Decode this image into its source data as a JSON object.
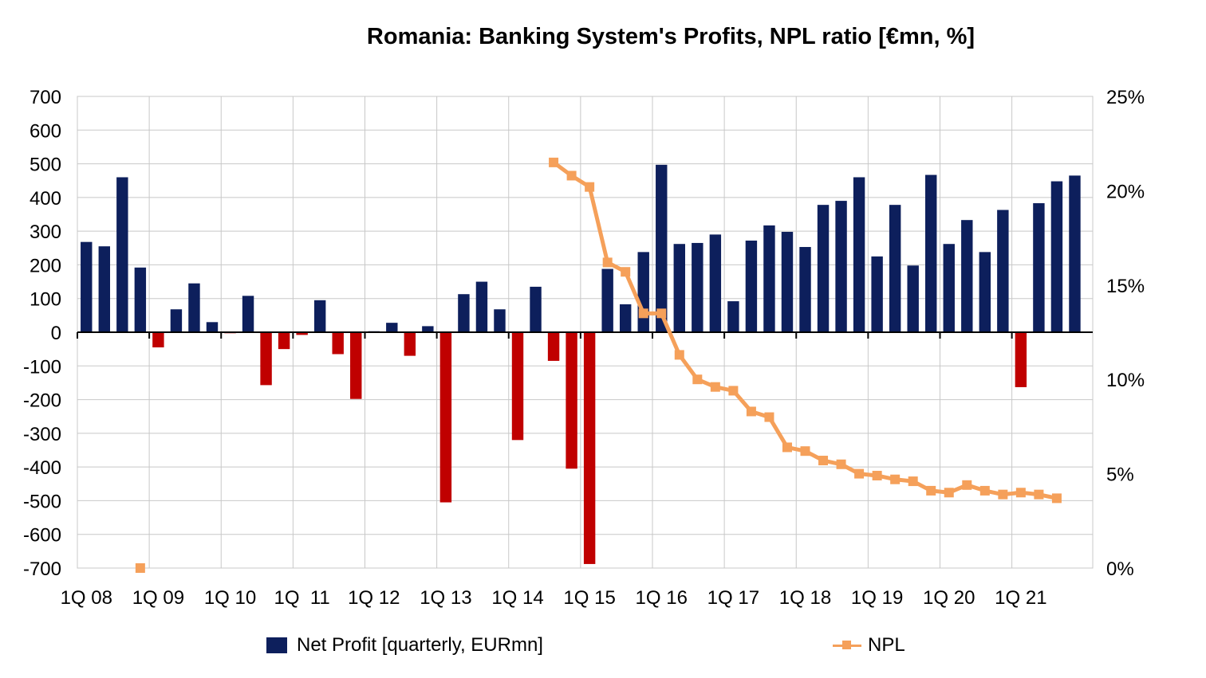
{
  "chart_data": {
    "type": "bar",
    "title": "Romania: Banking System's Profits, NPL ratio [€mn, %]",
    "x_tick_labels": [
      "1Q 08",
      "1Q 09",
      "1Q 10",
      "1Q  11",
      "1Q 12",
      "1Q 13",
      "1Q 14",
      "1Q 15",
      "1Q 16",
      "1Q 17",
      "1Q 18",
      "1Q 19",
      "1Q 20",
      "1Q 21"
    ],
    "y_left": {
      "lim": [
        -700,
        700
      ],
      "ticks": [
        700,
        600,
        500,
        400,
        300,
        200,
        100,
        0,
        -100,
        -200,
        -300,
        -400,
        -500,
        -600,
        -700
      ]
    },
    "y_right": {
      "lim": [
        0,
        25
      ],
      "ticks": [
        "25%",
        "20%",
        "15%",
        "10%",
        "5%",
        "0%"
      ]
    },
    "grid": true,
    "legend_position": "bottom",
    "colors": {
      "positive": "#0d1f5c",
      "negative": "#c00000",
      "npl": "#f5a05a"
    },
    "series": [
      {
        "name": "Net Profit [quarterly, EURmn]",
        "type": "bar",
        "axis": "left",
        "start": "1Q 08",
        "values": [
          268,
          255,
          460,
          192,
          -45,
          68,
          145,
          30,
          -3,
          108,
          -157,
          -50,
          -8,
          95,
          -65,
          -198,
          3,
          28,
          -70,
          18,
          -505,
          113,
          150,
          68,
          -320,
          135,
          -85,
          -405,
          -688,
          188,
          83,
          238,
          497,
          262,
          265,
          290,
          92,
          272,
          317,
          298,
          253,
          378,
          390,
          460,
          225,
          378,
          198,
          467,
          262,
          333,
          238,
          363,
          -163,
          383,
          448,
          465
        ]
      },
      {
        "name": "NPL",
        "type": "line",
        "axis": "right",
        "start": "1Q 08",
        "values": [
          null,
          null,
          null,
          0.0,
          null,
          null,
          null,
          null,
          null,
          null,
          null,
          null,
          null,
          null,
          null,
          null,
          null,
          null,
          null,
          null,
          null,
          null,
          null,
          null,
          null,
          null,
          21.5,
          20.8,
          20.2,
          16.2,
          15.7,
          13.5,
          13.5,
          11.3,
          10.0,
          9.6,
          9.4,
          8.3,
          8.0,
          6.4,
          6.2,
          5.7,
          5.5,
          5.0,
          4.9,
          4.7,
          4.6,
          4.1,
          4.0,
          4.4,
          4.1,
          3.9,
          4.0,
          3.9,
          3.7
        ]
      }
    ]
  }
}
